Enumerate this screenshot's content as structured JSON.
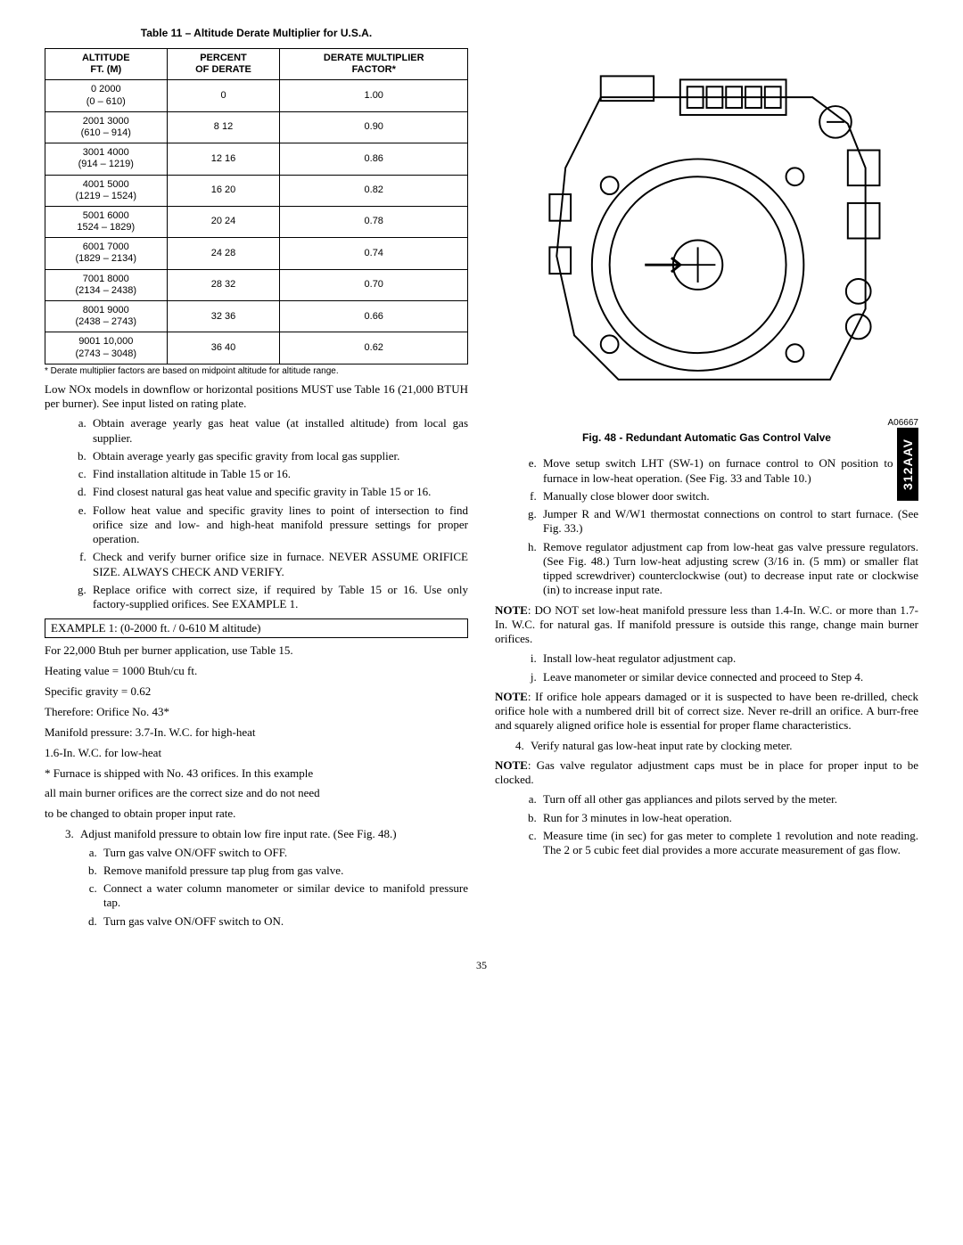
{
  "sideTab": "312AAV",
  "pageNumber": "35",
  "table": {
    "title": "Table 11 – Altitude Derate Multiplier for U.S.A.",
    "headers": [
      "ALTITUDE\nFT. (M)",
      "PERCENT\nOF DERATE",
      "DERATE MULTIPLIER\nFACTOR*"
    ],
    "rows": [
      [
        "0 2000\n(0 – 610)",
        "0",
        "1.00"
      ],
      [
        "2001 3000\n(610 – 914)",
        "8 12",
        "0.90"
      ],
      [
        "3001 4000\n(914 – 1219)",
        "12 16",
        "0.86"
      ],
      [
        "4001 5000\n(1219 – 1524)",
        "16 20",
        "0.82"
      ],
      [
        "5001 6000\n1524 – 1829)",
        "20 24",
        "0.78"
      ],
      [
        "6001 7000\n(1829 – 2134)",
        "24 28",
        "0.74"
      ],
      [
        "7001 8000\n(2134 – 2438)",
        "28 32",
        "0.70"
      ],
      [
        "8001 9000\n(2438 – 2743)",
        "32 36",
        "0.66"
      ],
      [
        "9001 10,000\n(2743 – 3048)",
        "36 40",
        "0.62"
      ]
    ],
    "footnote": "* Derate multiplier factors are based on midpoint altitude for altitude range."
  },
  "left": {
    "para1": "Low NOx models in downflow or horizontal positions MUST use Table 16 (21,000 BTUH per burner). See input listed on rating plate.",
    "listA": [
      "Obtain average yearly gas heat value (at installed altitude) from local gas supplier.",
      "Obtain average yearly gas specific gravity from local gas supplier.",
      "Find installation altitude in Table 15 or 16.",
      "Find closest natural gas heat value and specific gravity in Table 15 or 16.",
      "Follow heat value and specific gravity lines to point of intersection to find orifice size and low- and high-heat manifold pressure settings for proper operation.",
      "Check and verify burner orifice size in furnace. NEVER ASSUME ORIFICE SIZE. ALWAYS CHECK AND VERIFY.",
      "Replace orifice with correct size, if required by Table 15 or 16. Use only factory-supplied orifices. See EXAMPLE 1."
    ],
    "exampleTitle": "EXAMPLE 1: (0-2000 ft. / 0-610 M altitude)",
    "exampleLines": [
      "For 22,000 Btuh per burner application, use Table 15.",
      "Heating value = 1000 Btuh/cu ft.",
      "Specific gravity = 0.62",
      "Therefore: Orifice No. 43*",
      "Manifold pressure: 3.7-In. W.C. for high-heat",
      "1.6-In. W.C. for low-heat",
      "* Furnace is shipped with No. 43 orifices. In this example",
      "all main burner orifices are the correct size and do not need",
      "to be changed to obtain proper input rate."
    ],
    "step3": "Adjust manifold pressure to obtain low fire input rate. (See Fig. 48.)",
    "step3sub": [
      "Turn gas valve ON/OFF switch to OFF.",
      "Remove manifold pressure tap plug from gas valve.",
      "Connect a water column manometer or similar device to manifold pressure tap.",
      "Turn gas valve ON/OFF switch to ON."
    ]
  },
  "figure": {
    "code": "A06667",
    "caption": "Fig. 48 - Redundant Automatic Gas Control Valve"
  },
  "right": {
    "listE": [
      "Move setup switch LHT (SW-1) on furnace control to ON position to lock furnace in low-heat operation. (See Fig. 33 and Table 10.)",
      "Manually close blower door switch.",
      "Jumper R and W/W1 thermostat connections on control to start furnace. (See Fig. 33.)",
      "Remove regulator adjustment cap from low-heat gas valve pressure regulators. (See Fig. 48.) Turn low-heat adjusting screw (3/16 in. (5 mm) or smaller flat tipped screwdriver) counterclockwise (out) to decrease input rate or clockwise (in) to increase input rate."
    ],
    "note1": "NOTE:  DO NOT set low-heat manifold pressure less than 1.4-In. W.C. or more than 1.7-In. W.C. for natural gas. If manifold pressure is outside this range, change main burner orifices.",
    "listI": [
      "Install low-heat regulator adjustment cap.",
      "Leave manometer or similar device connected and proceed to Step 4."
    ],
    "note2": "NOTE:  If orifice hole appears damaged or it is suspected to have been re-drilled, check orifice hole with a numbered drill bit of correct size. Never re-drill an orifice. A burr-free and squarely aligned orifice hole is essential for proper flame characteristics.",
    "step4": "Verify natural gas low-heat input rate by clocking meter.",
    "note3": "NOTE:  Gas valve regulator adjustment caps must be in place for proper input to be clocked.",
    "listA2": [
      "Turn off all other gas appliances and pilots served by the meter.",
      "Run for 3 minutes in low-heat operation.",
      "Measure time (in sec) for gas meter to complete 1 revolution and note reading. The 2 or 5 cubic feet dial provides a more accurate measurement of gas flow."
    ]
  }
}
